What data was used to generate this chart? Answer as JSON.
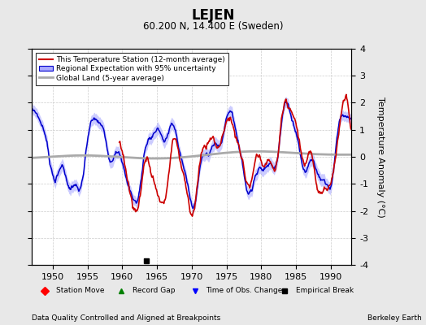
{
  "title": "LEJEN",
  "subtitle": "60.200 N, 14.400 E (Sweden)",
  "xlabel_left": "Data Quality Controlled and Aligned at Breakpoints",
  "xlabel_right": "Berkeley Earth",
  "ylabel": "Temperature Anomaly (°C)",
  "xlim": [
    1947,
    1993
  ],
  "ylim": [
    -4,
    4
  ],
  "yticks": [
    -4,
    -3,
    -2,
    -1,
    0,
    1,
    2,
    3,
    4
  ],
  "xticks": [
    1950,
    1955,
    1960,
    1965,
    1970,
    1975,
    1980,
    1985,
    1990
  ],
  "bg_color": "#e8e8e8",
  "plot_bg_color": "#ffffff",
  "red_line_color": "#cc0000",
  "blue_line_color": "#0000cc",
  "blue_fill_color": "#aaaaff",
  "gray_line_color": "#aaaaaa",
  "empirical_break_x": 1963.5,
  "empirical_break_y": -3.85,
  "legend_items": [
    "This Temperature Station (12-month average)",
    "Regional Expectation with 95% uncertainty",
    "Global Land (5-year average)"
  ],
  "bottom_legend": [
    "Station Move",
    "Record Gap",
    "Time of Obs. Change",
    "Empirical Break"
  ],
  "bottom_legend_colors": [
    "red",
    "green",
    "blue",
    "black"
  ],
  "bottom_legend_markers": [
    "D",
    "^",
    "v",
    "s"
  ]
}
